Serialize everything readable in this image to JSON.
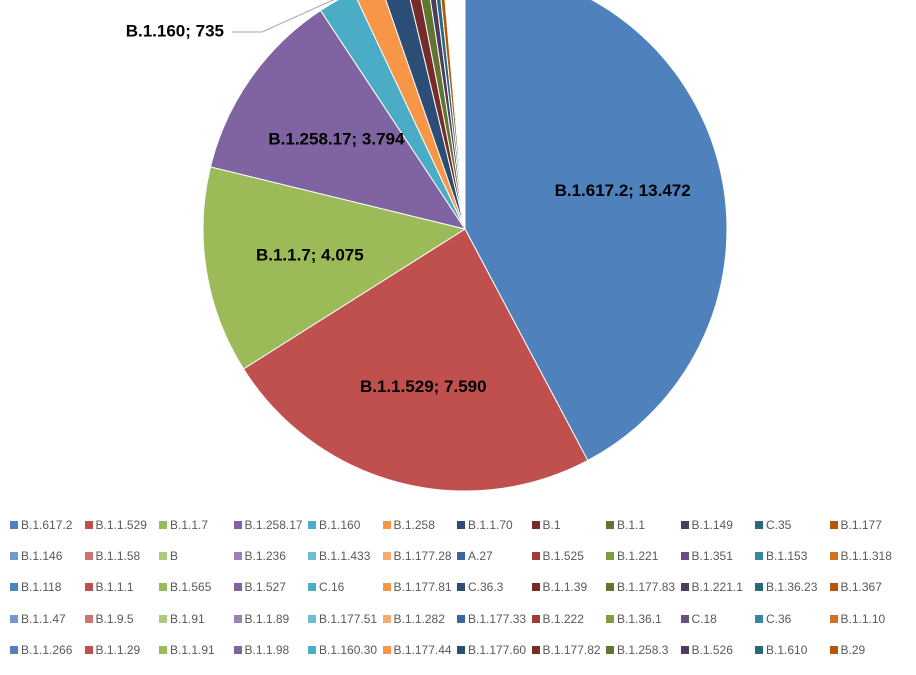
{
  "chart_data": {
    "type": "pie",
    "slices": [
      {
        "label": "B.1.617.2",
        "value": 13472,
        "display": "B.1.617.2; 13.472",
        "color": "#4f81bd"
      },
      {
        "label": "B.1.1.529",
        "value": 7590,
        "display": "B.1.1.529; 7.590",
        "color": "#c0504d"
      },
      {
        "label": "B.1.1.7",
        "value": 4075,
        "display": "B.1.1.7; 4.075",
        "color": "#9bbb59"
      },
      {
        "label": "B.1.258.17",
        "value": 3794,
        "display": "B.1.258.17; 3.794",
        "color": "#8064a2"
      },
      {
        "label": "B.1.160",
        "value": 735,
        "display": "B.1.160; 735",
        "color": "#4bacc6"
      },
      {
        "label": "B.1.258",
        "value": 540,
        "color": "#f79646"
      },
      {
        "label": "B.1.1.70",
        "value": 500,
        "color": "#2c4d75"
      },
      {
        "label": "B.1",
        "value": 230,
        "color": "#772c2a"
      },
      {
        "label": "B.1.1",
        "value": 200,
        "color": "#5f7530"
      },
      {
        "label": "B.1.149",
        "value": 130,
        "color": "#4d3b62"
      },
      {
        "label": "C.35",
        "value": 100,
        "color": "#276a7c"
      },
      {
        "label": "B.1.177",
        "value": 90,
        "color": "#b65708"
      }
    ],
    "legend": [
      "B.1.617.2",
      "B.1.1.529",
      "B.1.1.7",
      "B.1.258.17",
      "B.1.160",
      "B.1.258",
      "B.1.1.70",
      "B.1",
      "B.1.1",
      "B.1.149",
      "C.35",
      "B.1.177",
      "B.1.146",
      "B.1.1.58",
      "B",
      "B.1.236",
      "B.1.1.433",
      "B.1.177.28",
      "A.27",
      "B.1.525",
      "B.1.221",
      "B.1.351",
      "B.1.153",
      "B.1.1.318",
      "B.1.118",
      "B.1.1.1",
      "B.1.565",
      "B.1.527",
      "C.16",
      "B.1.177.81",
      "C.36.3",
      "B.1.1.39",
      "B.1.177.83",
      "B.1.221.1",
      "B.1.36.23",
      "B.1.367",
      "B.1.1.47",
      "B.1.9.5",
      "B.1.91",
      "B.1.1.89",
      "B.1.177.51",
      "B.1.1.282",
      "B.1.177.33",
      "B.1.222",
      "B.1.36.1",
      "C.18",
      "C.36",
      "B.1.1.10",
      "B.1.1.266",
      "B.1.1.29",
      "B.1.1.91",
      "B.1.1.98",
      "B.1.160.30",
      "B.1.177.44",
      "B.1.177.60",
      "B.1.177.82",
      "B.1.258.3",
      "B.1.526",
      "B.1.610",
      "B.29"
    ],
    "legend_colors": [
      "#4f81bd",
      "#c0504d",
      "#9bbb59",
      "#8064a2",
      "#4bacc6",
      "#f79646",
      "#2c4d75",
      "#772c2a",
      "#5f7530",
      "#4d3b62",
      "#276a7c",
      "#b65708",
      "#729aca",
      "#cd7371",
      "#afc97a",
      "#9983b5",
      "#6fbdd1",
      "#f9ab6b",
      "#3a679c",
      "#9f3b38",
      "#7f9c40",
      "#664f83",
      "#35899f",
      "#d9711c"
    ],
    "legend_placement": "bottom",
    "rest_colors": [
      "#729aca",
      "#cd7371",
      "#afc97a",
      "#9983b5",
      "#6fbdd1",
      "#f9ab6b",
      "#3a679c",
      "#9f3b38",
      "#7f9c40",
      "#664f83",
      "#35899f",
      "#d9711c",
      "#95b3d7",
      "#d99694",
      "#c3d69b",
      "#b3a2c7",
      "#93cddd",
      "#fac090"
    ]
  }
}
